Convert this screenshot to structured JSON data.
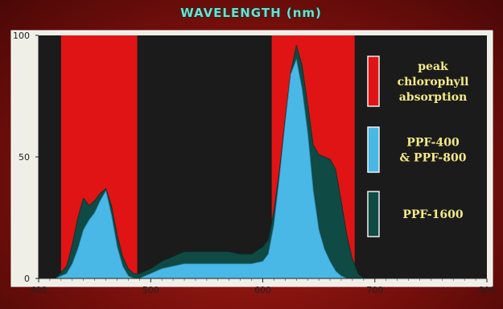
{
  "chart_data": {
    "type": "area",
    "title": "WAVELENGTH (nm)",
    "xlim": [
      400,
      800
    ],
    "ylim": [
      0,
      100
    ],
    "x_ticks": [
      400,
      500,
      600,
      700,
      800
    ],
    "y_ticks": [
      0,
      50,
      100
    ],
    "grid": false,
    "legend_position": "right",
    "bands": [
      {
        "name": "peak chlorophyll absorption",
        "x_start": 420,
        "x_end": 488,
        "color": "#e01414"
      },
      {
        "name": "peak chlorophyll absorption",
        "x_start": 608,
        "x_end": 682,
        "color": "#e01414"
      }
    ],
    "series": [
      {
        "name": "PPF-1600",
        "color": "#0f4a44",
        "x": [
          400,
          415,
          425,
          430,
          435,
          440,
          445,
          450,
          455,
          460,
          465,
          470,
          475,
          480,
          485,
          490,
          495,
          500,
          510,
          520,
          530,
          540,
          550,
          560,
          570,
          580,
          590,
          600,
          605,
          610,
          615,
          620,
          625,
          630,
          635,
          640,
          645,
          650,
          655,
          660,
          665,
          670,
          675,
          680,
          685,
          690
        ],
        "values": [
          0,
          0,
          5,
          14,
          25,
          33,
          30,
          32,
          35,
          37,
          30,
          18,
          9,
          4,
          2,
          2,
          3,
          4,
          7,
          9,
          11,
          11,
          11,
          11,
          11,
          10,
          10,
          13,
          16,
          28,
          45,
          66,
          85,
          96,
          88,
          72,
          55,
          51,
          50,
          49,
          45,
          32,
          18,
          8,
          2,
          0
        ]
      },
      {
        "name": "PPF-400 & PPF-800",
        "color": "#4ab8e6",
        "x": [
          400,
          415,
          425,
          430,
          435,
          440,
          445,
          450,
          455,
          460,
          465,
          470,
          475,
          480,
          485,
          490,
          495,
          500,
          510,
          520,
          530,
          540,
          550,
          560,
          570,
          580,
          590,
          600,
          605,
          610,
          615,
          620,
          625,
          630,
          635,
          640,
          645,
          650,
          655,
          660,
          665,
          670,
          675,
          680
        ],
        "values": [
          0,
          0,
          2,
          6,
          12,
          20,
          24,
          27,
          32,
          36,
          26,
          13,
          5,
          1,
          0,
          0,
          1,
          2,
          4,
          5,
          6,
          6,
          6,
          6,
          6,
          6,
          6,
          7,
          10,
          22,
          42,
          64,
          84,
          90,
          78,
          60,
          36,
          20,
          12,
          7,
          3,
          1,
          0,
          0
        ]
      }
    ],
    "legend": [
      {
        "label_lines": [
          "peak",
          "chlorophyll",
          "absorption"
        ],
        "color": "#e01414"
      },
      {
        "label_lines": [
          "PPF-400",
          "& PPF-800"
        ],
        "color": "#4ab8e6"
      },
      {
        "label_lines": [
          "PPF-1600"
        ],
        "color": "#0f4a44"
      }
    ]
  }
}
